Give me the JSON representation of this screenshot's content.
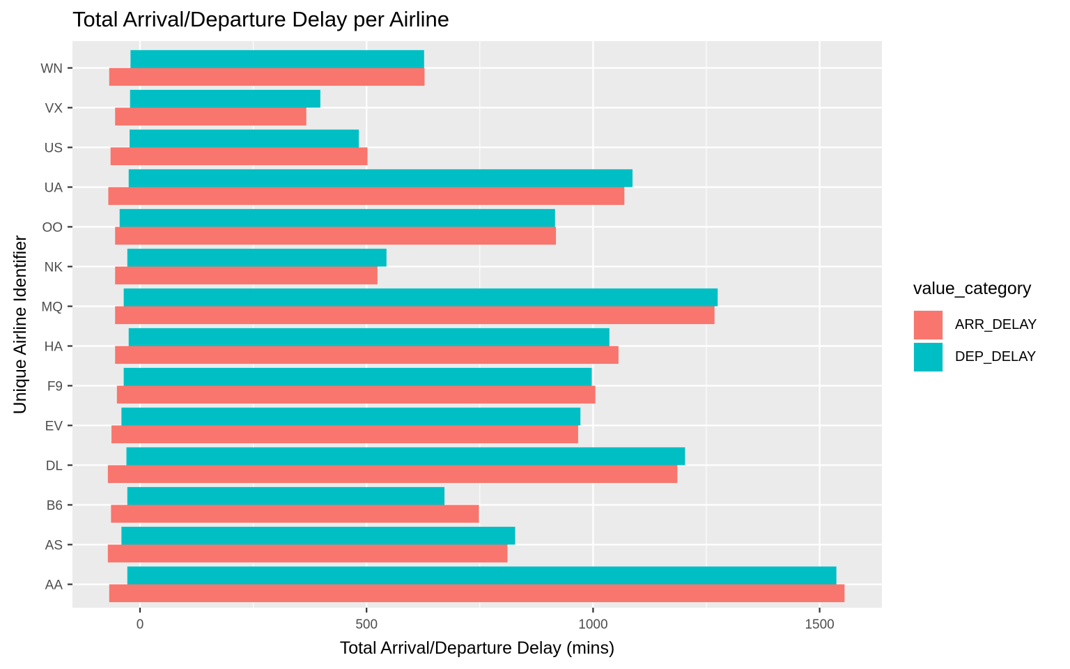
{
  "chart_data": {
    "type": "bar",
    "orientation": "horizontal",
    "title": "Total Arrival/Departure Delay per Airline",
    "xlabel": "Total Arrival/Departure Delay (mins)",
    "ylabel": "Unique Airline Identifier",
    "categories": [
      "AA",
      "AS",
      "B6",
      "DL",
      "EV",
      "F9",
      "HA",
      "MQ",
      "NK",
      "OO",
      "UA",
      "US",
      "VX",
      "WN"
    ],
    "xlim": [
      -150,
      1630
    ],
    "xticks": [
      0,
      500,
      1000,
      1500
    ],
    "xtick_labels": [
      "0",
      "500",
      "1000",
      "1500"
    ],
    "grid": true,
    "legend_position": "right",
    "legend_title": "value_category",
    "series": [
      {
        "name": "ARR_DELAY",
        "color": "#F8766D",
        "start": [
          -68,
          -71,
          -64,
          -71,
          -63,
          -51,
          -55,
          -55,
          -55,
          -55,
          -70,
          -65,
          -55,
          -68
        ],
        "values": [
          1555,
          811,
          748,
          1186,
          967,
          1005,
          1056,
          1268,
          524,
          918,
          1069,
          502,
          367,
          628
        ]
      },
      {
        "name": "DEP_DELAY",
        "color": "#00BFC4",
        "start": [
          -28,
          -41,
          -28,
          -30,
          -41,
          -36,
          -25,
          -36,
          -28,
          -45,
          -25,
          -23,
          -22,
          -21
        ],
        "values": [
          1537,
          828,
          672,
          1203,
          972,
          997,
          1036,
          1275,
          544,
          916,
          1087,
          483,
          398,
          627
        ]
      }
    ]
  }
}
